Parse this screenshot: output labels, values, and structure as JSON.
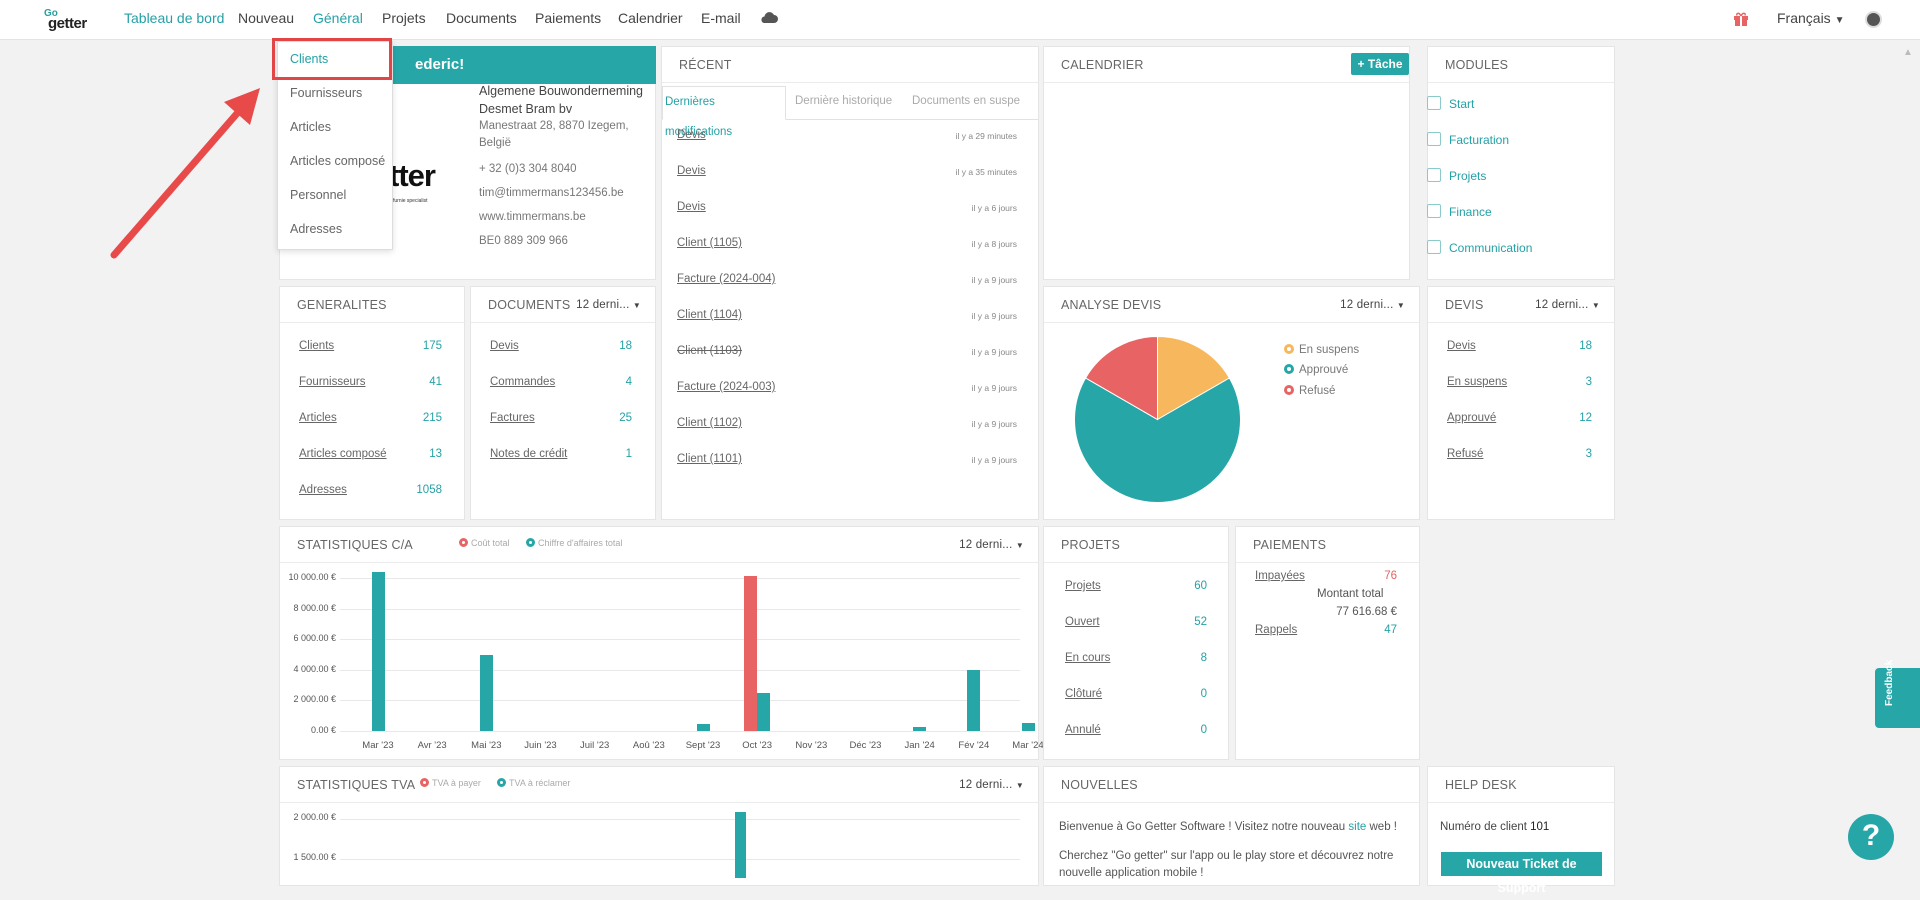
{
  "nav": {
    "logo_top": "Go",
    "logo_bottom": "getter",
    "items": [
      "Tableau de bord",
      "Nouveau",
      "Général",
      "Projets",
      "Documents",
      "Paiements",
      "Calendrier",
      "E-mail"
    ],
    "language": "Français"
  },
  "dropdown": {
    "items": [
      "Clients",
      "Fournisseurs",
      "Articles",
      "Articles composé",
      "Personnel",
      "Adresses"
    ]
  },
  "company": {
    "welcome": "ederic!",
    "logo_text": "tter",
    "logo_sub": "furnie specialist",
    "name_line1": "Algemene Bouwonderneming",
    "name_line2": "Desmet Bram bv",
    "address1": "Manestraat 28, 8870 Izegem,",
    "address2": "België",
    "phone": "+ 32 (0)3 304 8040",
    "email": "tim@timmermans123456.be",
    "website": "www.timmermans.be",
    "vat": "BE0 889 309 966"
  },
  "recent": {
    "title": "RÉCENT",
    "tabs": [
      "Dernières modifications",
      "Dernière historique",
      "Documents en suspe"
    ],
    "items": [
      {
        "label": "Devis",
        "time": "il y a 29 minutes"
      },
      {
        "label": "Devis",
        "time": "il y a 35 minutes"
      },
      {
        "label": "Devis",
        "time": "il y a 6 jours"
      },
      {
        "label": "Client (1105)",
        "time": "il y a 8 jours"
      },
      {
        "label": "Facture (2024-004)",
        "time": "il y a 9 jours"
      },
      {
        "label": "Client (1104)",
        "time": "il y a 9 jours"
      },
      {
        "label": "Client (1103)",
        "time": "il y a 9 jours"
      },
      {
        "label": "Facture (2024-003)",
        "time": "il y a 9 jours"
      },
      {
        "label": "Client (1102)",
        "time": "il y a 9 jours"
      },
      {
        "label": "Client (1101)",
        "time": "il y a 9 jours"
      }
    ]
  },
  "calendar": {
    "title": "CALENDRIER",
    "task_button": "+ Tâche"
  },
  "modules": {
    "title": "MODULES",
    "items": [
      "Start",
      "Facturation",
      "Projets",
      "Finance",
      "Communication"
    ]
  },
  "generalites": {
    "title": "GENERALITES",
    "rows": [
      {
        "label": "Clients",
        "value": "175"
      },
      {
        "label": "Fournisseurs",
        "value": "41"
      },
      {
        "label": "Articles",
        "value": "215"
      },
      {
        "label": "Articles composé",
        "value": "13"
      },
      {
        "label": "Adresses",
        "value": "1058"
      }
    ]
  },
  "documents": {
    "title": "DOCUMENTS",
    "period": "12 derni...",
    "rows": [
      {
        "label": "Devis",
        "value": "18"
      },
      {
        "label": "Commandes",
        "value": "4"
      },
      {
        "label": "Factures",
        "value": "25"
      },
      {
        "label": "Notes de crédit",
        "value": "1"
      }
    ]
  },
  "analyse": {
    "title": "ANALYSE DEVIS",
    "period": "12 derni...",
    "legend": [
      "En suspens",
      "Approuvé",
      "Refusé"
    ],
    "colors": [
      "#f7b75c",
      "#27a6a8",
      "#e86464"
    ]
  },
  "devis": {
    "title": "DEVIS",
    "period": "12 derni...",
    "rows": [
      {
        "label": "Devis",
        "value": "18"
      },
      {
        "label": "En suspens",
        "value": "3"
      },
      {
        "label": "Approuvé",
        "value": "12"
      },
      {
        "label": "Refusé",
        "value": "3"
      }
    ]
  },
  "stats_ca": {
    "title": "STATISTIQUES C/A",
    "period": "12 derni...",
    "legend": [
      "Coût total",
      "Chiffre d'affaires total"
    ],
    "yticks": [
      "10 000.00 €",
      "8 000.00 €",
      "6 000.00 €",
      "4 000.00 €",
      "2 000.00 €",
      "0.00 €"
    ],
    "months": [
      "Mar '23",
      "Avr '23",
      "Mai '23",
      "Juin '23",
      "Juil '23",
      "Aoû '23",
      "Sept '23",
      "Oct '23",
      "Nov '23",
      "Déc '23",
      "Jan '24",
      "Fév '24",
      "Mar '24"
    ]
  },
  "projets": {
    "title": "PROJETS",
    "rows": [
      {
        "label": "Projets",
        "value": "60"
      },
      {
        "label": "Ouvert",
        "value": "52"
      },
      {
        "label": "En cours",
        "value": "8"
      },
      {
        "label": "Clôturé",
        "value": "0"
      },
      {
        "label": "Annulé",
        "value": "0"
      }
    ]
  },
  "paiements": {
    "title": "PAIEMENTS",
    "unpaid_label": "Impayées",
    "unpaid_value": "76",
    "total_label": "Montant total",
    "total_value": "77 616.68 €",
    "reminders_label": "Rappels",
    "reminders_value": "47"
  },
  "stats_tva": {
    "title": "STATISTIQUES TVA",
    "period": "12 derni...",
    "legend": [
      "TVA à payer",
      "TVA à réclamer"
    ],
    "yticks": [
      "2 000.00 €",
      "1 500.00 €"
    ]
  },
  "news": {
    "title": "NOUVELLES",
    "line1_a": "Bienvenue à Go Getter Software ! Visitez notre nouveau ",
    "line1_link": "site",
    "line1_b": " web !",
    "line2": "Cherchez \"Go getter\" sur l'app ou le play store et découvrez notre nouvelle application mobile !"
  },
  "helpdesk": {
    "title": "HELP DESK",
    "client_label": "Numéro de client",
    "client_value": "101",
    "support_button": "Nouveau Ticket de Support"
  },
  "help_button": "?",
  "feedback": "Feedback",
  "chart_data": [
    {
      "type": "bar",
      "title": "STATISTIQUES C/A",
      "categories": [
        "Mar '23",
        "Avr '23",
        "Mai '23",
        "Juin '23",
        "Juil '23",
        "Aoû '23",
        "Sept '23",
        "Oct '23",
        "Nov '23",
        "Déc '23",
        "Jan '24",
        "Fév '24",
        "Mar '24"
      ],
      "series": [
        {
          "name": "Coût total",
          "color": "#e86464",
          "values": [
            0,
            0,
            0,
            0,
            0,
            0,
            0,
            10100,
            0,
            0,
            0,
            0,
            0
          ]
        },
        {
          "name": "Chiffre d'affaires total",
          "color": "#27a6a8",
          "values": [
            10400,
            0,
            5000,
            0,
            0,
            0,
            450,
            2500,
            0,
            0,
            250,
            4000,
            500
          ]
        }
      ],
      "ylim": [
        0,
        10000
      ]
    },
    {
      "type": "pie",
      "title": "ANALYSE DEVIS",
      "categories": [
        "En suspens",
        "Approuvé",
        "Refusé"
      ],
      "values": [
        3,
        12,
        3
      ]
    }
  ]
}
